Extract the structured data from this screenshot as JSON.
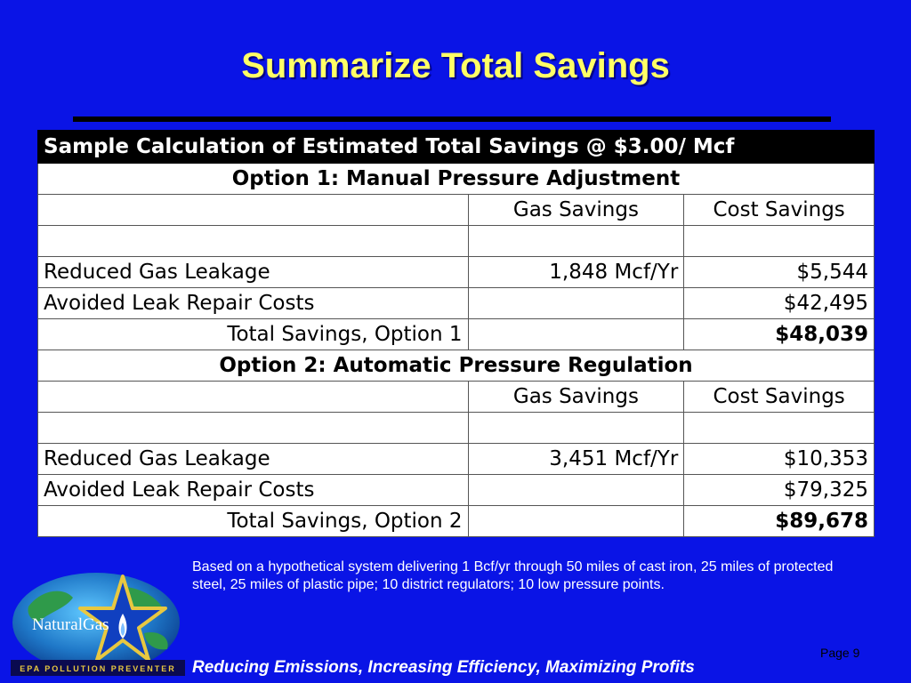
{
  "slide": {
    "title": "Summarize Total Savings",
    "page_label": "Page 9",
    "footer": "Reducing Emissions, Increasing Efficiency, Maximizing Profits"
  },
  "table": {
    "header": "Sample Calculation of Estimated Total Savings @ $3.00/ Mcf",
    "option1": {
      "title": "Option 1: Manual Pressure Adjustment",
      "col_gas": "Gas Savings",
      "col_cost": "Cost Savings",
      "rows": [
        {
          "label": "Reduced Gas Leakage",
          "gas": "1,848 Mcf/Yr",
          "cost": "$5,544"
        },
        {
          "label": "Avoided Leak Repair Costs",
          "gas": "",
          "cost": "$42,495"
        }
      ],
      "total_label": "Total Savings, Option 1",
      "total_value": "$48,039"
    },
    "option2": {
      "title": "Option 2: Automatic Pressure Regulation",
      "col_gas": "Gas Savings",
      "col_cost": "Cost Savings",
      "rows": [
        {
          "label": "Reduced Gas Leakage",
          "gas": "3,451 Mcf/Yr",
          "cost": "$10,353"
        },
        {
          "label": "Avoided Leak Repair Costs",
          "gas": "",
          "cost": "$79,325"
        }
      ],
      "total_label": "Total Savings, Option 2",
      "total_value": "$89,678"
    }
  },
  "note": "Based on a hypothetical system delivering 1 Bcf/yr through 50 miles of cast iron, 25 miles of protected steel, 25 miles of plastic pipe; 10 district regulators; 10 low pressure points.",
  "logo": {
    "name": "NaturalGas",
    "tagline": "EPA  POLLUTION  PREVENTER",
    "icon": "globe-star-flame-icon"
  },
  "colors": {
    "background": "#0a14e6",
    "title": "#ffff66",
    "logo_gold": "#e8c840"
  }
}
